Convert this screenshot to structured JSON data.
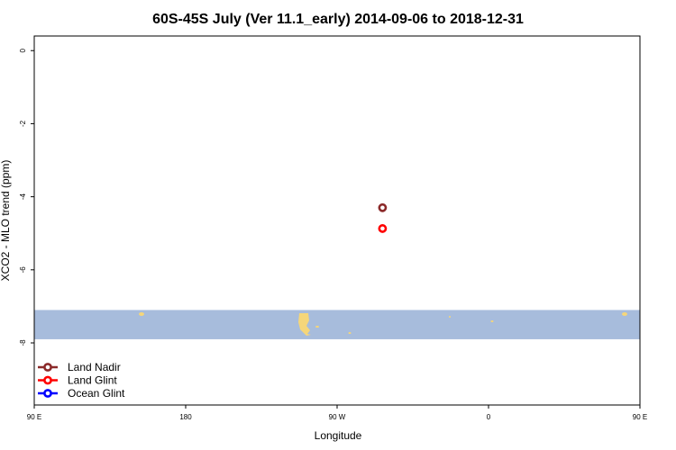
{
  "chart_data": {
    "type": "scatter",
    "title": "60S-45S July (Ver 11.1_early)   2014-09-06 to 2018-12-31",
    "xlabel": "Longitude",
    "ylabel": "XCO2 - MLO trend (ppm)",
    "xlim": [
      90,
      450
    ],
    "ylim": [
      -9.7,
      0.4
    ],
    "x_ticks": [
      {
        "value": 90,
        "label": "90 E"
      },
      {
        "value": 180,
        "label": "180"
      },
      {
        "value": 270,
        "label": "90 W"
      },
      {
        "value": 360,
        "label": "0"
      },
      {
        "value": 450,
        "label": "90 E"
      },
      {
        "value": 540,
        "label": "180"
      }
    ],
    "y_ticks": [
      {
        "value": 0,
        "label": "0"
      },
      {
        "value": -2,
        "label": "-2"
      },
      {
        "value": -4,
        "label": "-4"
      },
      {
        "value": -6,
        "label": "-6"
      },
      {
        "value": -8,
        "label": "-8"
      }
    ],
    "map_strip": {
      "y_top": -7.1,
      "y_bottom": -7.9,
      "ocean_color": "#a7bcdc",
      "land_color": "#f5d67a"
    },
    "series": [
      {
        "name": "Land Nadir",
        "color": "#8b2a2a",
        "points": [
          {
            "x": 297,
            "y": -4.3
          }
        ]
      },
      {
        "name": "Land Glint",
        "color": "#ff0000",
        "points": [
          {
            "x": 297,
            "y": -4.87
          }
        ]
      },
      {
        "name": "Ocean Glint",
        "color": "#0000ff",
        "points": []
      }
    ],
    "legend_position": "bottom-left"
  }
}
